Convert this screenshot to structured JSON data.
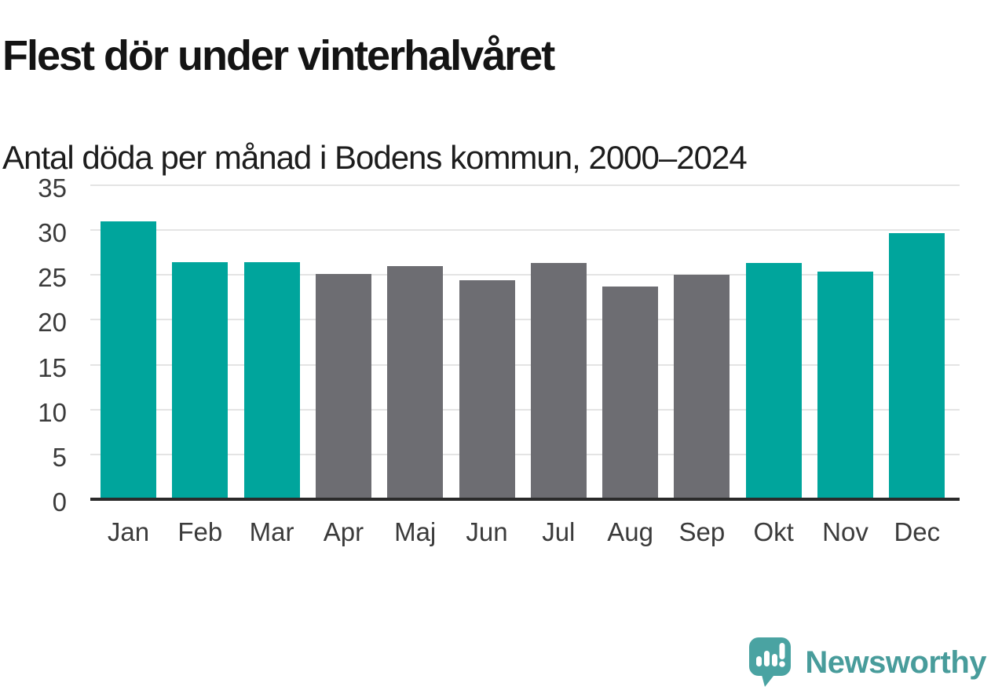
{
  "title": "Flest dör under vinterhalvåret",
  "subtitle": "Antal döda per månad i Bodens kommun, 2000–2024",
  "chart_data": {
    "type": "bar",
    "categories": [
      "Jan",
      "Feb",
      "Mar",
      "Apr",
      "Maj",
      "Jun",
      "Jul",
      "Aug",
      "Sep",
      "Okt",
      "Nov",
      "Dec"
    ],
    "values": [
      31.0,
      26.4,
      26.4,
      25.1,
      26.0,
      24.4,
      26.3,
      23.7,
      25.0,
      26.3,
      25.4,
      29.7
    ],
    "seasons": [
      "winter",
      "winter",
      "winter",
      "summer",
      "summer",
      "summer",
      "summer",
      "summer",
      "summer",
      "winter",
      "winter",
      "winter"
    ],
    "colors": {
      "winter": "#00a59c",
      "summer": "#6d6d72"
    },
    "title": "Flest dör under vinterhalvåret",
    "subtitle": "Antal döda per månad i Bodens kommun, 2000–2024",
    "xlabel": "",
    "ylabel": "",
    "ylim": [
      0,
      35
    ],
    "yticks": [
      0,
      5,
      10,
      15,
      20,
      25,
      30,
      35
    ],
    "grid": true,
    "legend": "none"
  },
  "branding": {
    "logo_text": "Newsworthy",
    "logo_text_color": "#489c9b",
    "bubble_color": "#4aa3a2"
  }
}
